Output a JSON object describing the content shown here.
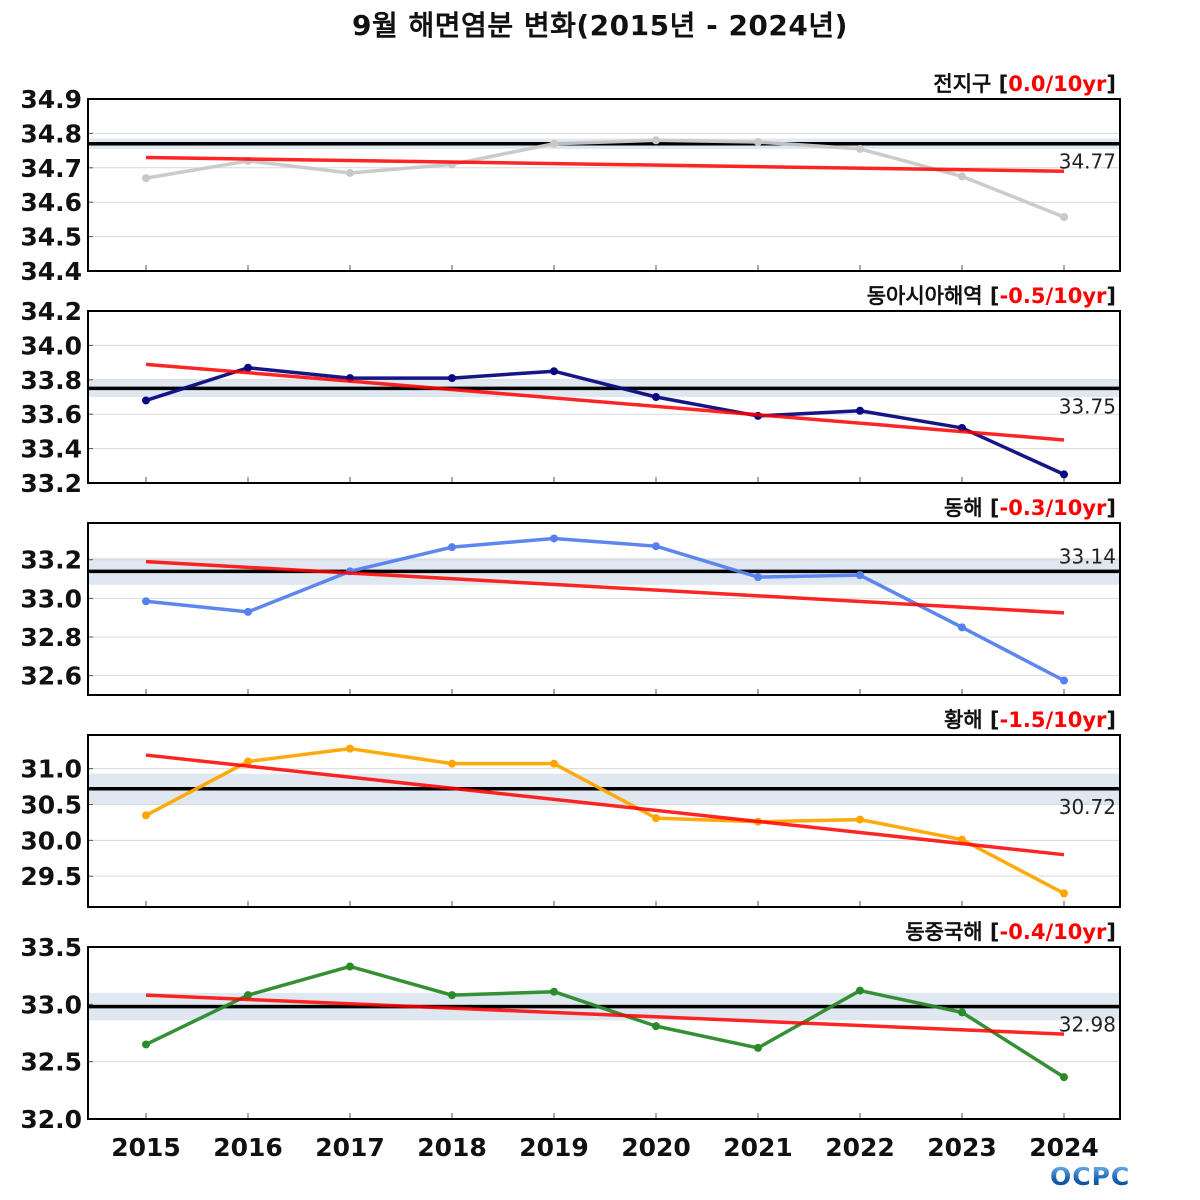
{
  "title": "9월 해면염분 변화(2015년 - 2024년)",
  "logo_text": "OCPC",
  "colors": {
    "trend": "#ff0000",
    "mean": "#000000",
    "band": "#dfe8f0",
    "grid": "#d9d9d9",
    "rate_text": "#ff0000"
  },
  "chart_data": [
    {
      "type": "line",
      "region": "전지구",
      "rate": "0.0/10yr",
      "color": "#c8c8c8",
      "x": [
        2015,
        2016,
        2017,
        2018,
        2019,
        2020,
        2021,
        2022,
        2023,
        2024
      ],
      "values": [
        34.67,
        34.72,
        34.685,
        34.71,
        34.77,
        34.78,
        34.775,
        34.755,
        34.675,
        34.557
      ],
      "mean": 34.77,
      "mean_label": "34.77",
      "band": [
        34.755,
        34.785
      ],
      "trend": [
        34.73,
        34.69
      ],
      "ylim": [
        34.4,
        34.9
      ],
      "yticks": [
        34.4,
        34.5,
        34.6,
        34.7,
        34.8,
        34.9
      ],
      "ytick_labels": [
        "34.4",
        "34.5",
        "34.6",
        "34.7",
        "34.8",
        "34.9"
      ],
      "grid": true
    },
    {
      "type": "line",
      "region": "동아시아해역",
      "rate": "-0.5/10yr",
      "color": "#0a0a80",
      "x": [
        2015,
        2016,
        2017,
        2018,
        2019,
        2020,
        2021,
        2022,
        2023,
        2024
      ],
      "values": [
        33.68,
        33.87,
        33.81,
        33.81,
        33.85,
        33.7,
        33.59,
        33.62,
        33.52,
        33.25
      ],
      "mean": 33.75,
      "mean_label": "33.75",
      "band": [
        33.7,
        33.8
      ],
      "trend": [
        33.89,
        33.45
      ],
      "ylim": [
        33.2,
        34.2
      ],
      "yticks": [
        33.2,
        33.4,
        33.6,
        33.8,
        34.0,
        34.2
      ],
      "ytick_labels": [
        "33.2",
        "33.4",
        "33.6",
        "33.8",
        "34.0",
        "34.2"
      ],
      "grid": true
    },
    {
      "type": "line",
      "region": "동해",
      "rate": "-0.3/10yr",
      "color": "#5580ee",
      "x": [
        2015,
        2016,
        2017,
        2018,
        2019,
        2020,
        2021,
        2022,
        2023,
        2024
      ],
      "values": [
        32.985,
        32.93,
        33.14,
        33.265,
        33.31,
        33.27,
        33.11,
        33.12,
        32.85,
        32.575
      ],
      "mean": 33.14,
      "mean_label": "33.14",
      "band": [
        33.07,
        33.21
      ],
      "trend": [
        33.19,
        32.925
      ],
      "ylim": [
        32.5,
        33.39
      ],
      "yticks": [
        32.6,
        32.8,
        33.0,
        33.2
      ],
      "ytick_labels": [
        "32.6",
        "32.8",
        "33.0",
        "33.2"
      ],
      "grid": true
    },
    {
      "type": "line",
      "region": "황해",
      "rate": "-1.5/10yr",
      "color": "#ffa500",
      "x": [
        2015,
        2016,
        2017,
        2018,
        2019,
        2020,
        2021,
        2022,
        2023,
        2024
      ],
      "values": [
        30.35,
        31.1,
        31.28,
        31.07,
        31.07,
        30.31,
        30.26,
        30.29,
        30.01,
        29.26
      ],
      "mean": 30.72,
      "mean_label": "30.72",
      "band": [
        30.5,
        30.93
      ],
      "trend": [
        31.19,
        29.8
      ],
      "ylim": [
        29.07,
        31.47
      ],
      "yticks": [
        29.5,
        30.0,
        30.5,
        31.0
      ],
      "ytick_labels": [
        "29.5",
        "30.0",
        "30.5",
        "31.0"
      ],
      "grid": true
    },
    {
      "type": "line",
      "region": "동중국해",
      "rate": "-0.4/10yr",
      "color": "#2a8a2a",
      "x": [
        2015,
        2016,
        2017,
        2018,
        2019,
        2020,
        2021,
        2022,
        2023,
        2024
      ],
      "values": [
        32.65,
        33.08,
        33.33,
        33.08,
        33.11,
        32.81,
        32.62,
        33.12,
        32.93,
        32.365
      ],
      "mean": 32.98,
      "mean_label": "32.98",
      "band": [
        32.86,
        33.1
      ],
      "trend": [
        33.08,
        32.74
      ],
      "ylim": [
        32.0,
        33.5
      ],
      "yticks": [
        32.0,
        32.5,
        33.0,
        33.5
      ],
      "ytick_labels": [
        "32.0",
        "32.5",
        "33.0",
        "33.5"
      ],
      "grid": true
    }
  ],
  "xaxis": {
    "ticks": [
      2015,
      2016,
      2017,
      2018,
      2019,
      2020,
      2021,
      2022,
      2023,
      2024
    ],
    "tick_labels": [
      "2015",
      "2016",
      "2017",
      "2018",
      "2019",
      "2020",
      "2021",
      "2022",
      "2023",
      "2024"
    ]
  }
}
